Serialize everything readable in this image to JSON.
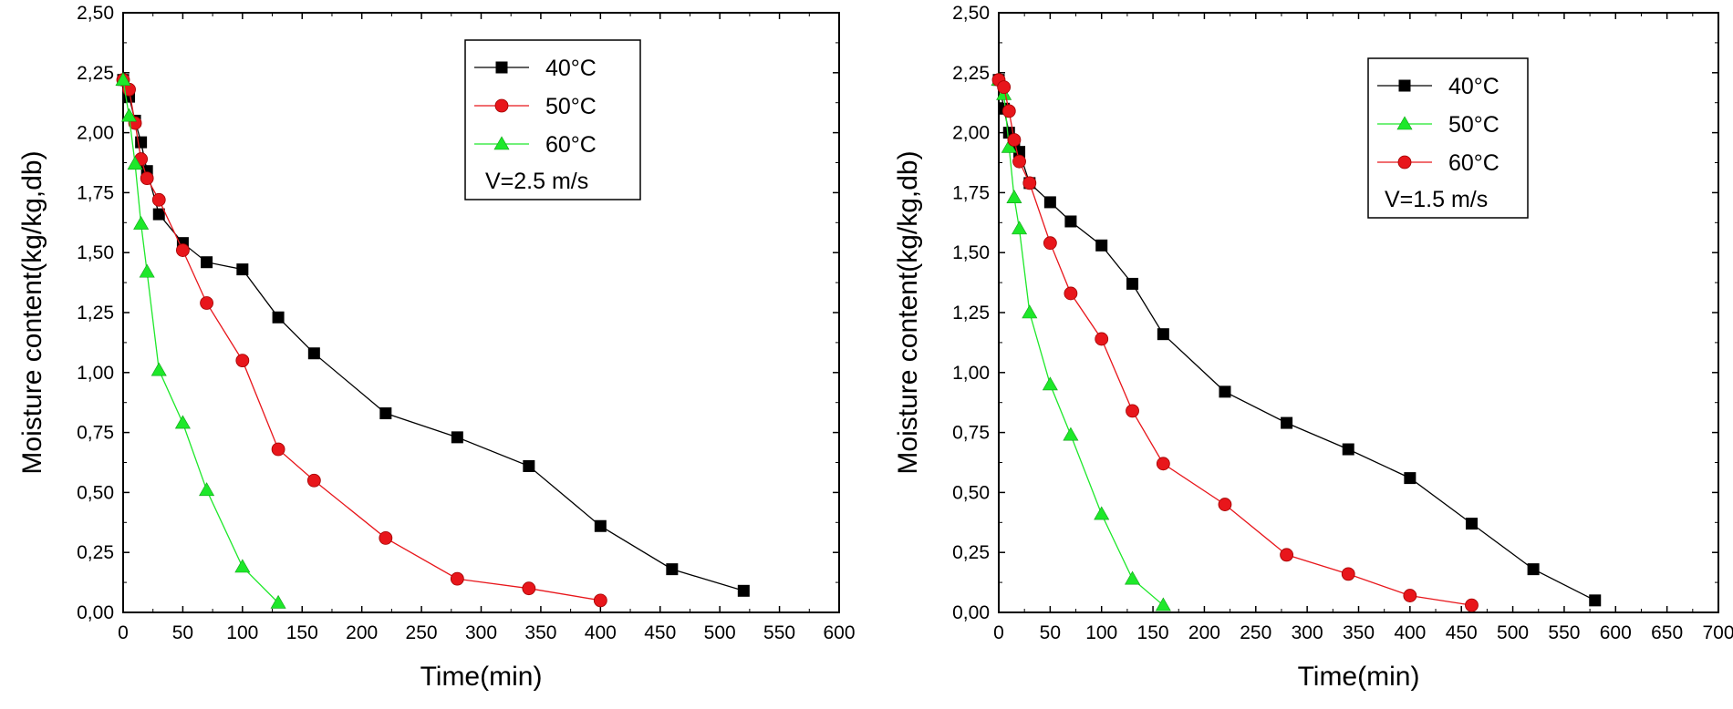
{
  "chart_data": [
    {
      "type": "line",
      "xlabel": "Time(min)",
      "ylabel": "Moisture content(kg/kg,db)",
      "xlim": [
        0,
        600
      ],
      "ylim": [
        0,
        2.5
      ],
      "xticks": [
        "0",
        "50",
        "100",
        "150",
        "200",
        "250",
        "300",
        "350",
        "400",
        "450",
        "500",
        "550",
        "600"
      ],
      "yticks": [
        "0,00",
        "0,25",
        "0,50",
        "0,75",
        "1,00",
        "1,25",
        "1,50",
        "1,75",
        "2,00",
        "2,25",
        "2,50"
      ],
      "grid": false,
      "legend_position": "top-right",
      "legend_note": "V=2.5 m/s",
      "series": [
        {
          "name": "40°C",
          "color": "#000000",
          "marker": "square",
          "x": [
            0,
            5,
            10,
            15,
            20,
            30,
            50,
            70,
            100,
            130,
            160,
            220,
            280,
            340,
            400,
            460,
            520
          ],
          "y": [
            2.22,
            2.15,
            2.05,
            1.96,
            1.84,
            1.66,
            1.54,
            1.46,
            1.43,
            1.23,
            1.08,
            0.83,
            0.73,
            0.61,
            0.36,
            0.18,
            0.09
          ]
        },
        {
          "name": "50°C",
          "color": "#e8161b",
          "marker": "circle",
          "x": [
            0,
            5,
            10,
            15,
            20,
            30,
            50,
            70,
            100,
            130,
            160,
            220,
            280,
            340,
            400
          ],
          "y": [
            2.22,
            2.18,
            2.04,
            1.89,
            1.81,
            1.72,
            1.51,
            1.29,
            1.05,
            0.68,
            0.55,
            0.31,
            0.14,
            0.1,
            0.05
          ]
        },
        {
          "name": "60°C",
          "color": "#1ee82a",
          "marker": "triangle",
          "x": [
            0,
            5,
            10,
            15,
            20,
            30,
            50,
            70,
            100,
            130
          ],
          "y": [
            2.22,
            2.07,
            1.87,
            1.62,
            1.42,
            1.01,
            0.79,
            0.51,
            0.19,
            0.04
          ]
        }
      ]
    },
    {
      "type": "line",
      "xlabel": "Time(min)",
      "ylabel": "Moisture content(kg/kg,db)",
      "xlim": [
        0,
        700
      ],
      "ylim": [
        0,
        2.5
      ],
      "xticks": [
        "0",
        "50",
        "100",
        "150",
        "200",
        "250",
        "300",
        "350",
        "400",
        "450",
        "500",
        "550",
        "600",
        "650",
        "700"
      ],
      "yticks": [
        "0,00",
        "0,25",
        "0,50",
        "0,75",
        "1,00",
        "1,25",
        "1,50",
        "1,75",
        "2,00",
        "2,25",
        "2,50"
      ],
      "grid": false,
      "legend_position": "top-right",
      "legend_note": "V=1.5 m/s",
      "series": [
        {
          "name": "40°C",
          "color": "#000000",
          "marker": "square",
          "x": [
            0,
            5,
            10,
            15,
            20,
            30,
            50,
            70,
            100,
            130,
            160,
            220,
            280,
            340,
            400,
            460,
            520,
            580
          ],
          "y": [
            2.22,
            2.1,
            2.0,
            1.96,
            1.92,
            1.79,
            1.71,
            1.63,
            1.53,
            1.37,
            1.16,
            0.92,
            0.79,
            0.68,
            0.56,
            0.37,
            0.18,
            0.05
          ]
        },
        {
          "name": "50°C",
          "color": "#1ee82a",
          "marker": "triangle",
          "x": [
            0,
            5,
            10,
            15,
            20,
            30,
            50,
            70,
            100,
            130,
            160
          ],
          "y": [
            2.22,
            2.16,
            1.94,
            1.73,
            1.6,
            1.25,
            0.95,
            0.74,
            0.41,
            0.14,
            0.03
          ]
        },
        {
          "name": "60°C",
          "color": "#e8161b",
          "marker": "circle",
          "x": [
            0,
            5,
            10,
            15,
            20,
            30,
            50,
            70,
            100,
            130,
            160,
            220,
            280,
            340,
            400,
            460
          ],
          "y": [
            2.22,
            2.19,
            2.09,
            1.97,
            1.88,
            1.79,
            1.54,
            1.33,
            1.14,
            0.84,
            0.62,
            0.45,
            0.24,
            0.16,
            0.07,
            0.03
          ]
        }
      ]
    }
  ]
}
